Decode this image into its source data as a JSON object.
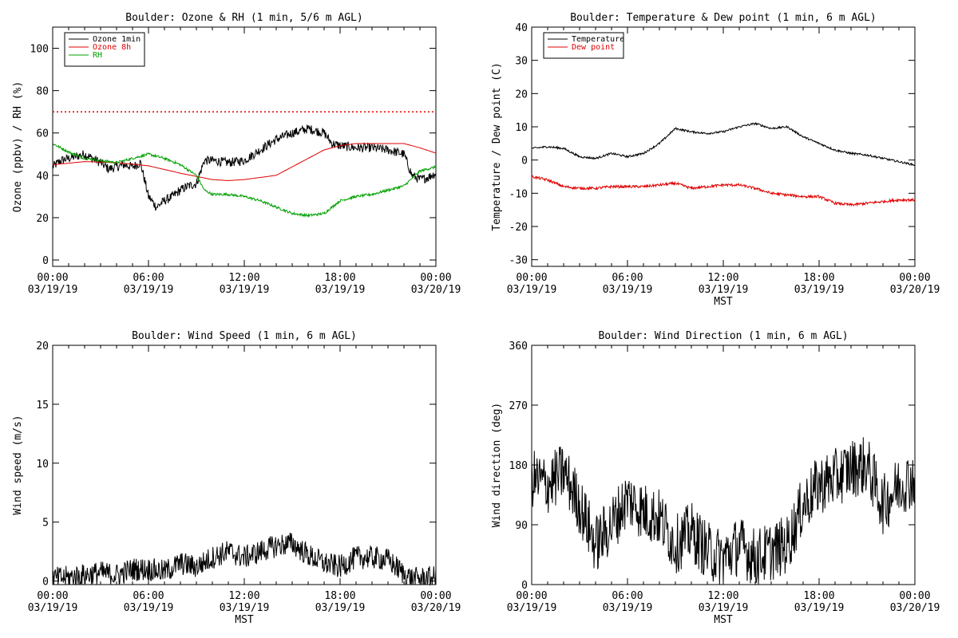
{
  "charts": [
    {
      "id": "ozone_rh",
      "type": "line",
      "title": "Boulder: Ozone & RH (1 min, 5/6 m AGL)",
      "ylabel": "Ozone (ppbv) / RH (%)",
      "xlabel": "",
      "ylim": [
        -3,
        110
      ],
      "yticks": [
        0,
        20,
        40,
        60,
        80,
        100
      ],
      "threshold_line": {
        "y": 70,
        "color": "#e00000",
        "style": "dotted"
      },
      "legend_position": "top-left",
      "series": [
        {
          "name": "Ozone 1min",
          "color": "#000000",
          "noise": 2.2,
          "x": [
            0,
            0.5,
            1,
            1.5,
            2,
            2.5,
            3,
            3.5,
            4,
            4.5,
            5,
            5.5,
            6,
            6.5,
            7,
            7.5,
            8,
            8.5,
            9,
            9.5,
            10,
            11,
            12,
            13,
            14,
            15,
            16,
            17,
            17.5,
            18,
            19,
            20,
            21,
            22,
            22.5,
            23,
            23.5,
            24
          ],
          "y": [
            44,
            47,
            48,
            49,
            50,
            48,
            46,
            43,
            44,
            45,
            44,
            46,
            30,
            25,
            28,
            30,
            33,
            35,
            36,
            47,
            47,
            46,
            47,
            52,
            57,
            60,
            62,
            60,
            55,
            54,
            53,
            53,
            52,
            50,
            40,
            38,
            39,
            41
          ]
        },
        {
          "name": "Ozone 8h",
          "color": "#e00000",
          "noise": 0,
          "x": [
            0,
            2,
            4,
            6,
            8,
            10,
            11,
            12,
            14,
            15,
            16,
            17,
            18,
            19,
            20,
            21,
            22,
            23,
            24
          ],
          "y": [
            45,
            46.5,
            46,
            44.5,
            41,
            38,
            37.5,
            38,
            40,
            44,
            48,
            52,
            54,
            55,
            55,
            55,
            55,
            53,
            50.5
          ]
        },
        {
          "name": "RH",
          "color": "#00a000",
          "noise": 0.6,
          "x": [
            0,
            1,
            2,
            3,
            4,
            5,
            6,
            7,
            8,
            9,
            9.5,
            10,
            11,
            12,
            13,
            14,
            15,
            16,
            17,
            17.5,
            18,
            19,
            20,
            21,
            22,
            23,
            24
          ],
          "y": [
            55,
            51,
            48,
            47,
            46,
            48,
            50,
            48,
            45,
            40,
            33,
            31,
            31,
            30,
            28,
            25,
            22,
            21,
            22,
            25,
            28,
            30,
            31,
            33,
            35,
            42,
            44
          ]
        }
      ]
    },
    {
      "id": "temp_dew",
      "type": "line",
      "title": "Boulder: Temperature & Dew point (1 min, 6 m AGL)",
      "ylabel": "Temperature / Dew point (C)",
      "xlabel": "MST",
      "ylim": [
        -32,
        40
      ],
      "yticks": [
        -30,
        -20,
        -10,
        0,
        10,
        20,
        30,
        40
      ],
      "legend_position": "top-left",
      "series": [
        {
          "name": "Temperature",
          "color": "#000000",
          "noise": 0.3,
          "x": [
            0,
            1,
            2,
            3,
            4,
            5,
            6,
            7,
            8,
            9,
            10,
            11,
            12,
            13,
            14,
            15,
            16,
            17,
            18,
            19,
            20,
            21,
            22,
            23,
            24
          ],
          "y": [
            3.5,
            4,
            3.5,
            1,
            0.5,
            2,
            1,
            2,
            5,
            9.5,
            8.5,
            8,
            8.5,
            10,
            11,
            9.5,
            10,
            7,
            5,
            3,
            2,
            1.5,
            0.5,
            -0.5,
            -1.5
          ]
        },
        {
          "name": "Dew point",
          "color": "#e00000",
          "noise": 0.4,
          "x": [
            0,
            1,
            2,
            3,
            4,
            5,
            6,
            7,
            8,
            9,
            10,
            11,
            12,
            13,
            14,
            15,
            16,
            17,
            18,
            19,
            20,
            21,
            22,
            23,
            24
          ],
          "y": [
            -5,
            -6,
            -8,
            -8.5,
            -8.5,
            -8,
            -8,
            -8,
            -7.5,
            -7,
            -8.5,
            -8,
            -7.5,
            -7.5,
            -8.5,
            -10,
            -10.5,
            -11,
            -11,
            -13,
            -13.5,
            -13,
            -12.5,
            -12,
            -12
          ]
        }
      ]
    },
    {
      "id": "wind_speed",
      "type": "line",
      "title": "Boulder: Wind Speed (1 min, 6 m AGL)",
      "ylabel": "Wind speed (m/s)",
      "xlabel": "MST",
      "ylim": [
        -0.3,
        20
      ],
      "yticks": [
        0,
        5,
        10,
        15,
        20
      ],
      "legend_position": "",
      "series": [
        {
          "name": "",
          "color": "#000000",
          "noise": 1.0,
          "x": [
            0,
            1,
            2,
            3,
            4,
            5,
            6,
            7,
            8,
            9,
            10,
            11,
            12,
            13,
            14,
            15,
            16,
            17,
            18,
            19,
            20,
            21,
            22,
            22.5,
            23,
            24
          ],
          "y": [
            0.2,
            0.3,
            0.5,
            0.7,
            0.5,
            1,
            1,
            0.8,
            1.5,
            1.2,
            2,
            2.5,
            2,
            2.5,
            3,
            3.2,
            2.2,
            1.5,
            1.2,
            2,
            2,
            1.8,
            0.6,
            0.2,
            0.2,
            0.3
          ]
        }
      ]
    },
    {
      "id": "wind_dir",
      "type": "line",
      "title": "Boulder: Wind Direction (1 min, 6 m AGL)",
      "ylabel": "Wind direction (deg)",
      "xlabel": "MST",
      "ylim": [
        0,
        360
      ],
      "yticks": [
        0,
        90,
        180,
        270,
        360
      ],
      "legend_position": "",
      "series": [
        {
          "name": "",
          "color": "#000000",
          "noise": 45,
          "x": [
            0,
            1,
            2,
            3,
            4,
            5,
            6,
            7,
            8,
            9,
            10,
            11,
            12,
            13,
            14,
            15,
            16,
            17,
            18,
            19,
            20,
            21,
            22,
            23,
            24
          ],
          "y": [
            160,
            150,
            170,
            120,
            60,
            90,
            130,
            110,
            100,
            60,
            80,
            50,
            40,
            60,
            40,
            50,
            60,
            120,
            150,
            160,
            175,
            180,
            120,
            150,
            160
          ]
        }
      ]
    }
  ],
  "xaxis": {
    "tick_times": [
      "00:00",
      "06:00",
      "12:00",
      "18:00",
      "00:00"
    ],
    "tick_dates": [
      "03/19/19",
      "03/19/19",
      "03/19/19",
      "03/19/19",
      "03/20/19"
    ],
    "xlim_hours": [
      0,
      24
    ]
  }
}
